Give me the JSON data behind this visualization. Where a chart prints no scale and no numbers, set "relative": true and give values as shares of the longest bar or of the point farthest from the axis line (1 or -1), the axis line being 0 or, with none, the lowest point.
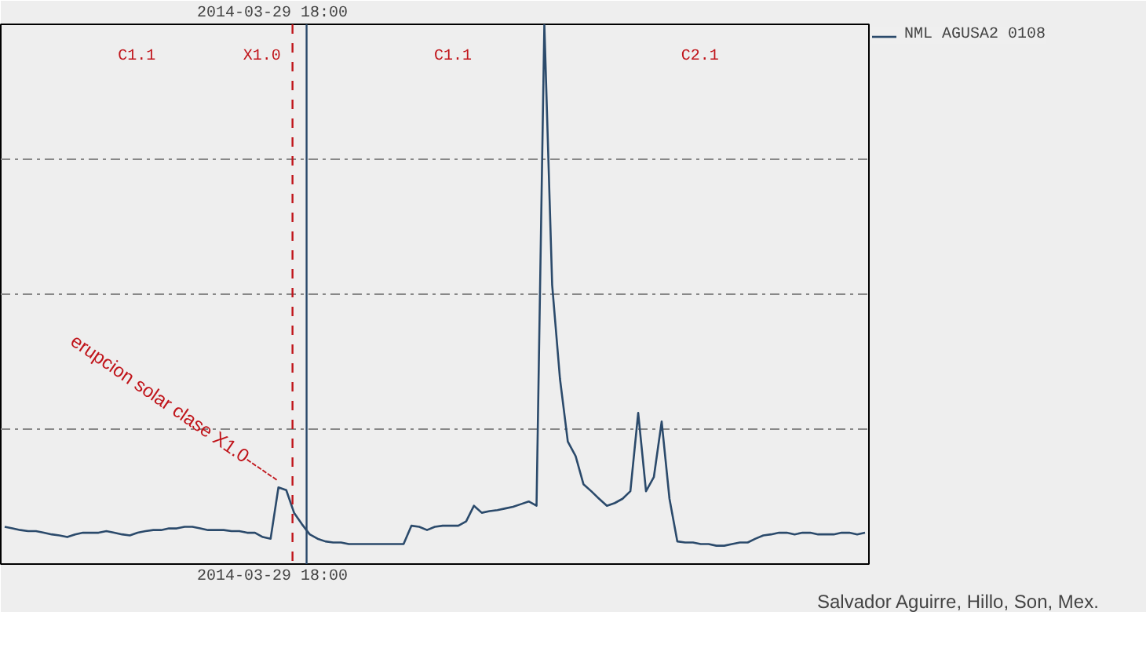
{
  "chart_data": {
    "type": "line",
    "relative": true,
    "grid": "y",
    "legend": "right",
    "marker": "none",
    "line_style": "solid",
    "categories": [
      null,
      null,
      null,
      null,
      null,
      null,
      null,
      null,
      null,
      null,
      null,
      null,
      null,
      null,
      null,
      null,
      null,
      null,
      null,
      null,
      null,
      null,
      null,
      null,
      null,
      null,
      null,
      null,
      null,
      null,
      null,
      null,
      null,
      null,
      null,
      null,
      null,
      null,
      null,
      null,
      null,
      null,
      null,
      null,
      null,
      null,
      null,
      null,
      null,
      null,
      null,
      null,
      null,
      null,
      null,
      null,
      null,
      null,
      null,
      null,
      null,
      null,
      null,
      null,
      null,
      null,
      null,
      null,
      null,
      null,
      null,
      null,
      null,
      null,
      null,
      null,
      null,
      null,
      null,
      null,
      null,
      null,
      null,
      null,
      null,
      null,
      null,
      null,
      null,
      null,
      null,
      null,
      null,
      null,
      null,
      null,
      null,
      null,
      null,
      null,
      null,
      null,
      null,
      null,
      null,
      null,
      null,
      null,
      null,
      null,
      null
    ],
    "series": [
      {
        "name": "NML AGUSA2 0108",
        "color": "#2b4a6b",
        "values": [
          0.069,
          0.066,
          0.063,
          0.061,
          0.061,
          0.058,
          0.055,
          0.053,
          0.05,
          0.055,
          0.058,
          0.058,
          0.058,
          0.061,
          0.058,
          0.055,
          0.053,
          0.058,
          0.061,
          0.063,
          0.063,
          0.066,
          0.066,
          0.069,
          0.069,
          0.066,
          0.063,
          0.063,
          0.063,
          0.061,
          0.061,
          0.058,
          0.058,
          0.05,
          0.047,
          0.142,
          0.137,
          0.095,
          0.074,
          0.055,
          0.047,
          0.042,
          0.04,
          0.04,
          0.037,
          0.037,
          0.037,
          0.037,
          0.037,
          0.037,
          0.037,
          0.037,
          0.071,
          0.069,
          0.063,
          0.069,
          0.071,
          0.071,
          0.071,
          0.079,
          0.108,
          0.095,
          0.098,
          0.1,
          0.103,
          0.106,
          0.111,
          0.116,
          0.108,
          1,
          0.517,
          0.343,
          0.227,
          0.2,
          0.148,
          0.135,
          0.121,
          0.108,
          0.113,
          0.121,
          0.135,
          0.28,
          0.135,
          0.161,
          0.264,
          0.121,
          0.042,
          0.04,
          0.04,
          0.037,
          0.037,
          0.034,
          0.034,
          0.037,
          0.04,
          0.04,
          0.047,
          0.053,
          0.055,
          0.058,
          0.058,
          0.055,
          0.058,
          0.058,
          0.055,
          0.055,
          0.055,
          0.058,
          0.058,
          0.055,
          0.058
        ]
      }
    ],
    "annotations": [
      "2014-03-29 18:00",
      "2014-03-29 18:00",
      "erupcion solar clase X1.0------",
      "Salvador Aguirre, Hillo, Son, Mex.",
      "C1.1",
      "X1.0",
      "C1.1",
      "C2.1"
    ]
  }
}
